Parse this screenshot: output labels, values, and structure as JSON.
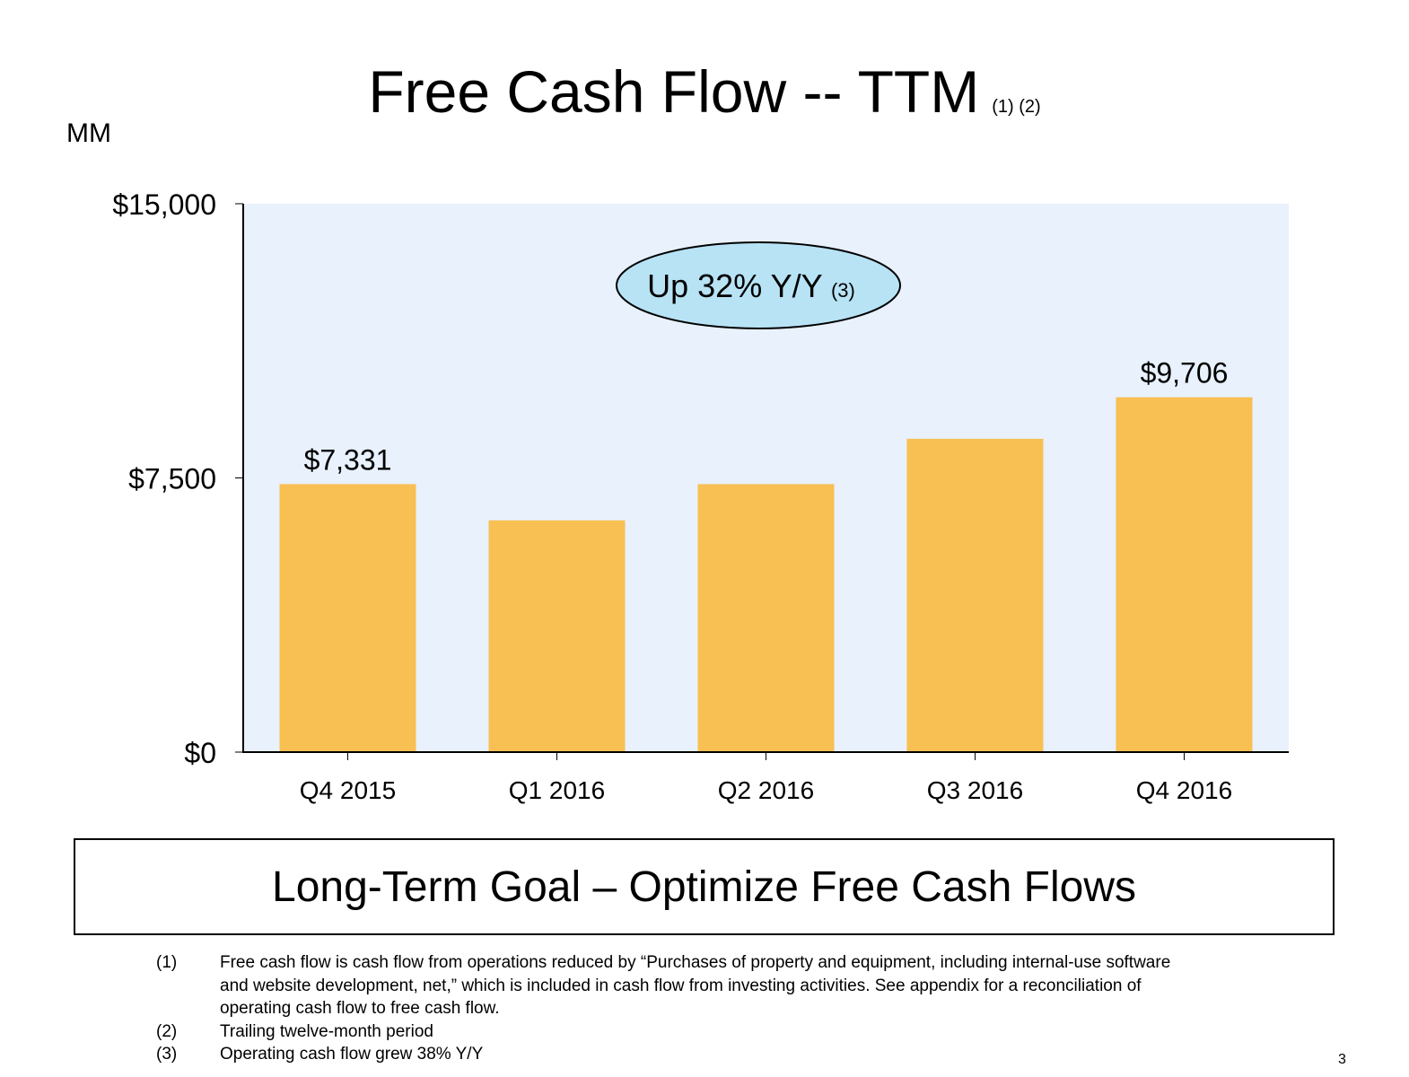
{
  "slide": {
    "title": "Free Cash Flow -- TTM",
    "title_refs": "(1) (2)",
    "unit_label": "MM",
    "goal_text": "Long-Term Goal – Optimize Free Cash Flows",
    "page_number": "3"
  },
  "chart_data": {
    "type": "bar",
    "categories": [
      "Q4 2015",
      "Q1 2016",
      "Q2 2016",
      "Q3 2016",
      "Q4 2016"
    ],
    "values": [
      7331,
      6340,
      7330,
      8570,
      9706
    ],
    "data_labels": [
      "$7,331",
      "",
      "",
      "",
      "$9,706"
    ],
    "y_ticks": [
      {
        "value": 0,
        "label": "$0"
      },
      {
        "value": 7500,
        "label": "$7,500"
      },
      {
        "value": 15000,
        "label": "$15,000"
      }
    ],
    "ylim": [
      0,
      15000
    ],
    "xlabel": "",
    "ylabel": "",
    "grid": false,
    "legend": "none",
    "colors": {
      "bar": "#F8BF52",
      "plot_background": "#E8F1FC",
      "callout_fill": "#B7E3F5",
      "axis": "#000000"
    },
    "annotation": {
      "text": "Up 32% Y/Y",
      "ref": "(3)"
    }
  },
  "footnotes": [
    {
      "num": "(1)",
      "lines": [
        "Free cash flow is cash flow from operations reduced by “Purchases of property and equipment, including internal-use software",
        "and website development, net,” which is included in cash flow from investing activities. See appendix for a reconciliation of",
        "operating cash flow to free cash flow."
      ]
    },
    {
      "num": "(2)",
      "lines": [
        "Trailing twelve-month period"
      ]
    },
    {
      "num": "(3)",
      "lines": [
        "Operating cash flow grew 38% Y/Y"
      ]
    }
  ]
}
